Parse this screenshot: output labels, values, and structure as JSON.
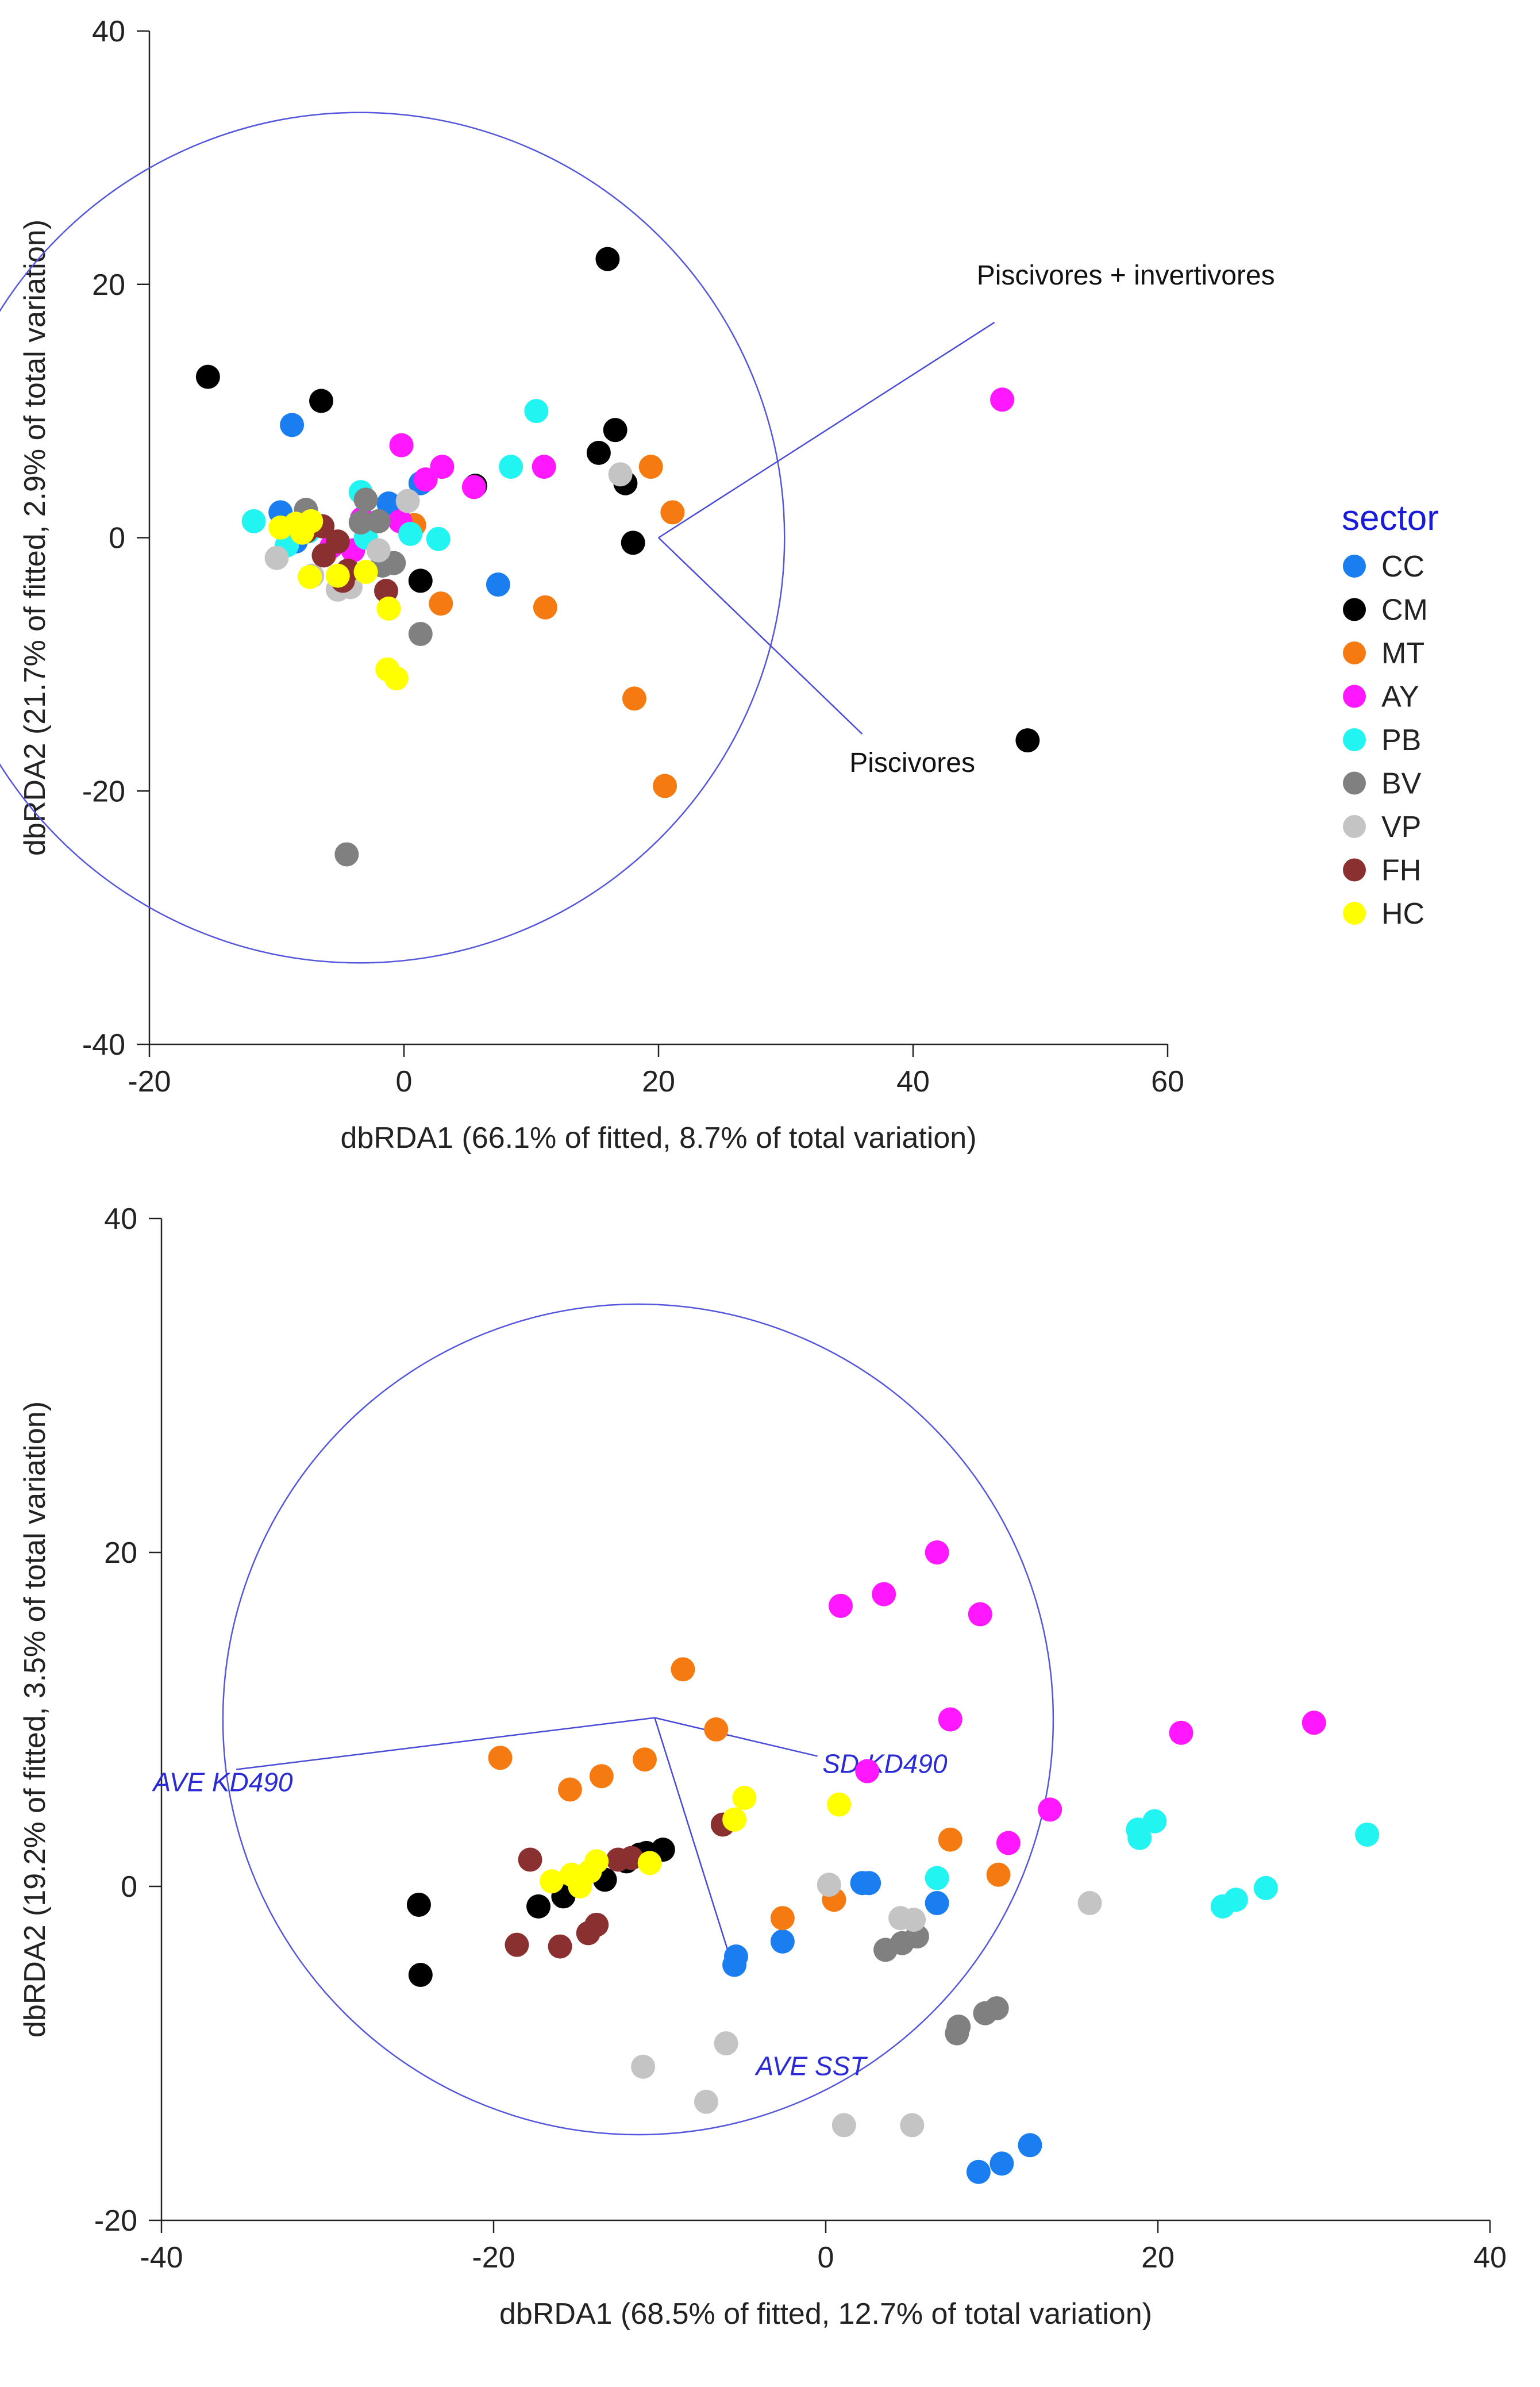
{
  "colors": {
    "CC": "#1a7ef0",
    "CM": "#000000",
    "MT": "#f57a12",
    "AY": "#ff18ff",
    "PB": "#22f4f2",
    "BV": "#808080",
    "VP": "#c4c4c4",
    "FH": "#8a3030",
    "HC": "#ffff00",
    "circle": "#5555dd",
    "vector": "#4a4ad8"
  },
  "legend": {
    "title": "sector",
    "items": [
      "CC",
      "CM",
      "MT",
      "AY",
      "PB",
      "BV",
      "VP",
      "FH",
      "HC"
    ]
  },
  "chart_data": [
    {
      "type": "scatter",
      "title": "",
      "xlabel": "dbRDA1 (66.1% of fitted, 8.7% of total variation)",
      "ylabel": "dbRDA2 (21.7% of fitted, 2.9% of total variation)",
      "xlim": [
        -20,
        60
      ],
      "ylim": [
        -40,
        40
      ],
      "xticks": [
        -20,
        0,
        20,
        40,
        60
      ],
      "yticks": [
        -40,
        -20,
        0,
        20,
        40
      ],
      "correlation_circle": {
        "center": [
          -3.5,
          0
        ],
        "radius": 33.4
      },
      "vectors": [
        {
          "label": "Piscivores + invertivores",
          "origin": [
            20,
            0
          ],
          "end": [
            46.4,
            17
          ],
          "label_at": [
            45,
            20
          ]
        },
        {
          "label": "Piscivores",
          "origin": [
            20,
            0
          ],
          "end": [
            36,
            -15.5
          ],
          "label_at": [
            35,
            -18.5
          ]
        }
      ],
      "series": [
        {
          "name": "CC",
          "points": [
            [
              -8.8,
              8.9
            ],
            [
              -9.7,
              2
            ],
            [
              -8.5,
              -0.3
            ],
            [
              -1.2,
              2.7
            ],
            [
              1.3,
              4.3
            ],
            [
              -4.7,
              -3
            ],
            [
              7.4,
              -3.7
            ]
          ]
        },
        {
          "name": "CM",
          "points": [
            [
              -15.4,
              12.7
            ],
            [
              -6.5,
              10.8
            ],
            [
              16,
              22
            ],
            [
              16.6,
              8.5
            ],
            [
              15.3,
              6.7
            ],
            [
              17.4,
              4.3
            ],
            [
              5.6,
              4.1
            ],
            [
              18,
              -0.4
            ],
            [
              1.3,
              -3.4
            ],
            [
              49,
              -16
            ]
          ]
        },
        {
          "name": "MT",
          "points": [
            [
              19.4,
              5.6
            ],
            [
              21.1,
              2
            ],
            [
              0.8,
              1
            ],
            [
              -4.3,
              -3
            ],
            [
              -6.2,
              -1.3
            ],
            [
              2.9,
              -5.2
            ],
            [
              11.1,
              -5.5
            ],
            [
              18.1,
              -12.7
            ],
            [
              20.5,
              -19.6
            ]
          ]
        },
        {
          "name": "AY",
          "points": [
            [
              -0.2,
              7.3
            ],
            [
              3,
              5.6
            ],
            [
              1.7,
              4.6
            ],
            [
              5.5,
              4
            ],
            [
              11,
              5.6
            ],
            [
              47,
              10.9
            ],
            [
              -3.3,
              1.5
            ],
            [
              -0.3,
              1.3
            ],
            [
              -4,
              -1
            ],
            [
              -5.7,
              -0.7
            ]
          ]
        },
        {
          "name": "PB",
          "points": [
            [
              -11.8,
              1.3
            ],
            [
              10.4,
              10
            ],
            [
              8.4,
              5.6
            ],
            [
              -3.4,
              3.6
            ],
            [
              -8.6,
              0.9
            ],
            [
              0.5,
              0.3
            ],
            [
              2.7,
              -0.1
            ],
            [
              -7.5,
              0.5
            ],
            [
              -9.2,
              -0.6
            ],
            [
              -3,
              0
            ]
          ]
        },
        {
          "name": "BV",
          "points": [
            [
              -7.7,
              2.2
            ],
            [
              -3,
              3
            ],
            [
              -3.4,
              1.2
            ],
            [
              -2,
              1.3
            ],
            [
              -0.8,
              -2
            ],
            [
              -1.7,
              -2.2
            ],
            [
              -5,
              -3.8
            ],
            [
              1.3,
              -7.6
            ],
            [
              -4.5,
              -25
            ]
          ]
        },
        {
          "name": "VP",
          "points": [
            [
              0.3,
              2.9
            ],
            [
              17,
              5
            ],
            [
              -10,
              -1.6
            ],
            [
              -5.2,
              -4.1
            ],
            [
              -4.2,
              -3.9
            ],
            [
              -7.2,
              -3
            ],
            [
              -2,
              -1
            ]
          ]
        },
        {
          "name": "FH",
          "points": [
            [
              -7.7,
              0.5
            ],
            [
              -6.4,
              0.9
            ],
            [
              -5.2,
              -0.3
            ],
            [
              -4.4,
              -2.6
            ],
            [
              -6.3,
              -1.4
            ],
            [
              -4.8,
              -3.4
            ],
            [
              -1.4,
              -4.2
            ]
          ]
        },
        {
          "name": "HC",
          "points": [
            [
              -9.7,
              0.8
            ],
            [
              -8.5,
              1.1
            ],
            [
              -7.3,
              1.3
            ],
            [
              -8,
              0.4
            ],
            [
              -3,
              -2.7
            ],
            [
              -5.2,
              -3
            ],
            [
              -7.4,
              -3.1
            ],
            [
              -1.2,
              -5.6
            ],
            [
              -1.3,
              -10.4
            ],
            [
              -0.6,
              -11.1
            ]
          ]
        }
      ]
    },
    {
      "type": "scatter",
      "title": "",
      "xlabel": "dbRDA1 (68.5% of fitted, 12.7% of total variation)",
      "ylabel": "dbRDA2 (19.2% of fitted, 3.5% of total variation)",
      "xlim": [
        -40,
        40
      ],
      "ylim": [
        -20,
        40
      ],
      "xticks": [
        -40,
        -20,
        0,
        20,
        40
      ],
      "yticks": [
        -20,
        0,
        20,
        40
      ],
      "correlation_circle": {
        "center": [
          -11.3,
          10
        ],
        "radius": 25
      },
      "vectors": [
        {
          "label": "AVE KD490",
          "origin": [
            -10.3,
            10.1
          ],
          "end": [
            -35.5,
            7
          ],
          "label_at": [
            -40.5,
            5.7
          ]
        },
        {
          "label": "SD KD490",
          "origin": [
            -10.3,
            10.1
          ],
          "end": [
            -0.5,
            7.8
          ],
          "label_at": [
            -0.2,
            6.8
          ]
        },
        {
          "label": "AVE SST",
          "origin": [
            -10.3,
            10.1
          ],
          "end": [
            -5.5,
            -5.1
          ],
          "label_at": [
            -4.2,
            -11.3
          ]
        }
      ],
      "series": [
        {
          "name": "CC",
          "points": [
            [
              2.2,
              0.2
            ],
            [
              2.6,
              0.2
            ],
            [
              6.7,
              -1
            ],
            [
              -2.6,
              -3.3
            ],
            [
              -5.4,
              -4.2
            ],
            [
              -5.5,
              -4.7
            ],
            [
              9.2,
              -17.1
            ],
            [
              10.6,
              -16.6
            ],
            [
              12.3,
              -15.5
            ]
          ]
        },
        {
          "name": "CM",
          "points": [
            [
              -24.5,
              -1.1
            ],
            [
              -24.4,
              -5.3
            ],
            [
              -17.3,
              -1.2
            ],
            [
              -15.8,
              -0.6
            ],
            [
              -13.3,
              0.4
            ],
            [
              -12,
              1.5
            ],
            [
              -11.2,
              1.9
            ],
            [
              -10.8,
              2
            ],
            [
              -9.8,
              2.2
            ]
          ]
        },
        {
          "name": "MT",
          "points": [
            [
              -8.6,
              13
            ],
            [
              -6.6,
              9.4
            ],
            [
              -19.6,
              7.7
            ],
            [
              -10.9,
              7.6
            ],
            [
              -15.4,
              5.8
            ],
            [
              -13.5,
              6.6
            ],
            [
              -2.6,
              -1.9
            ],
            [
              0.5,
              -0.8
            ],
            [
              7.5,
              2.8
            ],
            [
              10.4,
              0.7
            ]
          ]
        },
        {
          "name": "AY",
          "points": [
            [
              6.7,
              20
            ],
            [
              3.5,
              17.5
            ],
            [
              0.9,
              16.8
            ],
            [
              9.3,
              16.3
            ],
            [
              7.5,
              10
            ],
            [
              2.5,
              6.9
            ],
            [
              21.4,
              9.2
            ],
            [
              29.4,
              9.8
            ],
            [
              13.5,
              4.6
            ],
            [
              11,
              2.6
            ]
          ]
        },
        {
          "name": "PB",
          "points": [
            [
              6.7,
              0.5
            ],
            [
              18.8,
              3.4
            ],
            [
              19.8,
              3.9
            ],
            [
              18.9,
              2.9
            ],
            [
              23.9,
              -1.2
            ],
            [
              24.7,
              -0.8
            ],
            [
              26.5,
              -0.1
            ],
            [
              32.6,
              3.1
            ]
          ]
        },
        {
          "name": "BV",
          "points": [
            [
              3.6,
              -3.8
            ],
            [
              4.6,
              -3.4
            ],
            [
              5.5,
              -3
            ],
            [
              8,
              -8.4
            ],
            [
              7.9,
              -8.8
            ],
            [
              9.6,
              -7.6
            ],
            [
              10.3,
              -7.3
            ]
          ]
        },
        {
          "name": "VP",
          "points": [
            [
              0.2,
              0.1
            ],
            [
              4.5,
              -1.9
            ],
            [
              5.3,
              -2
            ],
            [
              15.9,
              -1
            ],
            [
              -6,
              -9.4
            ],
            [
              -11,
              -10.8
            ],
            [
              -7.2,
              -12.9
            ],
            [
              1.1,
              -14.3
            ],
            [
              5.2,
              -14.3
            ]
          ]
        },
        {
          "name": "FH",
          "points": [
            [
              -17.8,
              1.6
            ],
            [
              -12.5,
              1.6
            ],
            [
              -11.7,
              1.7
            ],
            [
              -18.6,
              -3.5
            ],
            [
              -16,
              -3.6
            ],
            [
              -13.8,
              -2.3
            ],
            [
              -14.3,
              -2.8
            ],
            [
              -6.2,
              3.7
            ]
          ]
        },
        {
          "name": "HC",
          "points": [
            [
              -16.5,
              0.3
            ],
            [
              -15.3,
              0.7
            ],
            [
              -14.8,
              0
            ],
            [
              -14.2,
              0.9
            ],
            [
              -13.8,
              1.5
            ],
            [
              -10.6,
              1.4
            ],
            [
              -4.9,
              5.3
            ],
            [
              -5.5,
              4
            ],
            [
              0.8,
              4.9
            ]
          ]
        }
      ]
    }
  ]
}
